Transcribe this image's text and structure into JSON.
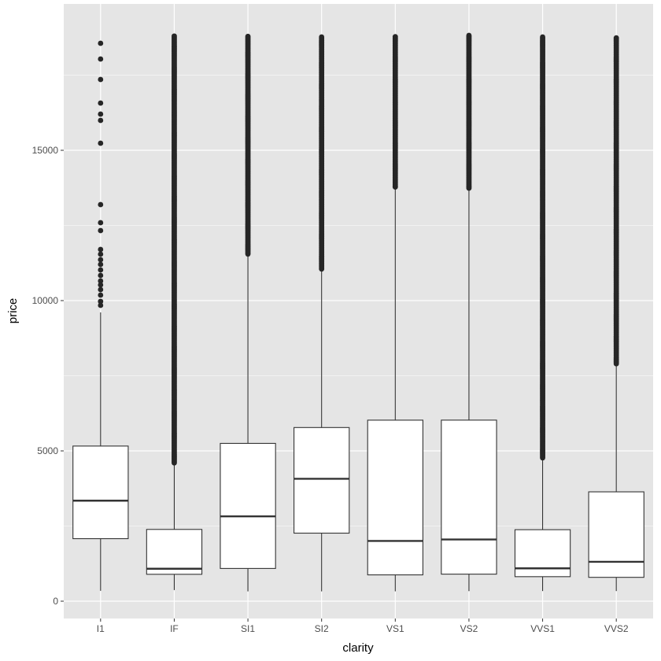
{
  "chart_data": {
    "type": "boxplot",
    "title": "",
    "xlabel": "clarity",
    "ylabel": "price",
    "ylim": [
      -1200,
      19600
    ],
    "yticks": [
      0,
      5000,
      10000,
      15000
    ],
    "ytick_labels": [
      "0",
      "5000",
      "10000",
      "15000"
    ],
    "grid": true,
    "categories": [
      "I1",
      "IF",
      "SI1",
      "SI2",
      "VS1",
      "VS2",
      "VVS1",
      "VVS2"
    ],
    "boxes": [
      {
        "category": "I1",
        "lower": 345,
        "q1": 2080,
        "median": 3344,
        "q3": 5161,
        "upper": 9608,
        "outliers": [
          9843,
          9974,
          10183,
          10366,
          10524,
          10654,
          10838,
          11021,
          11204,
          11361,
          11545,
          11702,
          12330,
          12592,
          13194,
          15236,
          15995,
          16204,
          16571,
          17356,
          18037,
          18560
        ],
        "outlier_range": null
      },
      {
        "category": "IF",
        "lower": 369,
        "q1": 895,
        "median": 1080,
        "q3": 2388,
        "upper": 4555,
        "outliers": [],
        "outlier_range": [
          4600,
          18806
        ]
      },
      {
        "category": "SI1",
        "lower": 326,
        "q1": 1089,
        "median": 2822,
        "q3": 5250,
        "upper": 11490,
        "outliers": [],
        "outlier_range": [
          11550,
          18818
        ]
      },
      {
        "category": "SI2",
        "lower": 326,
        "q1": 2264,
        "median": 4072,
        "q3": 5777,
        "upper": 11000,
        "outliers": [],
        "outlier_range": [
          11050,
          18804
        ]
      },
      {
        "category": "VS1",
        "lower": 327,
        "q1": 876,
        "median": 2005,
        "q3": 6023,
        "upper": 13740,
        "outliers": [],
        "outlier_range": [
          13780,
          18795
        ]
      },
      {
        "category": "VS2",
        "lower": 334,
        "q1": 900,
        "median": 2054,
        "q3": 6024,
        "upper": 13700,
        "outliers": [],
        "outlier_range": [
          13740,
          18823
        ]
      },
      {
        "category": "VVS1",
        "lower": 336,
        "q1": 816,
        "median": 1093,
        "q3": 2379,
        "upper": 4720,
        "outliers": [],
        "outlier_range": [
          4770,
          18777
        ]
      },
      {
        "category": "VVS2",
        "lower": 336,
        "q1": 794,
        "median": 1311,
        "q3": 3638,
        "upper": 7860,
        "outliers": [],
        "outlier_range": [
          7900,
          18768
        ]
      }
    ],
    "colors": {
      "panel": "#e5e5e5",
      "grid": "#ffffff",
      "box_fill": "#ffffff",
      "line": "#333333",
      "point": "#262626"
    }
  }
}
